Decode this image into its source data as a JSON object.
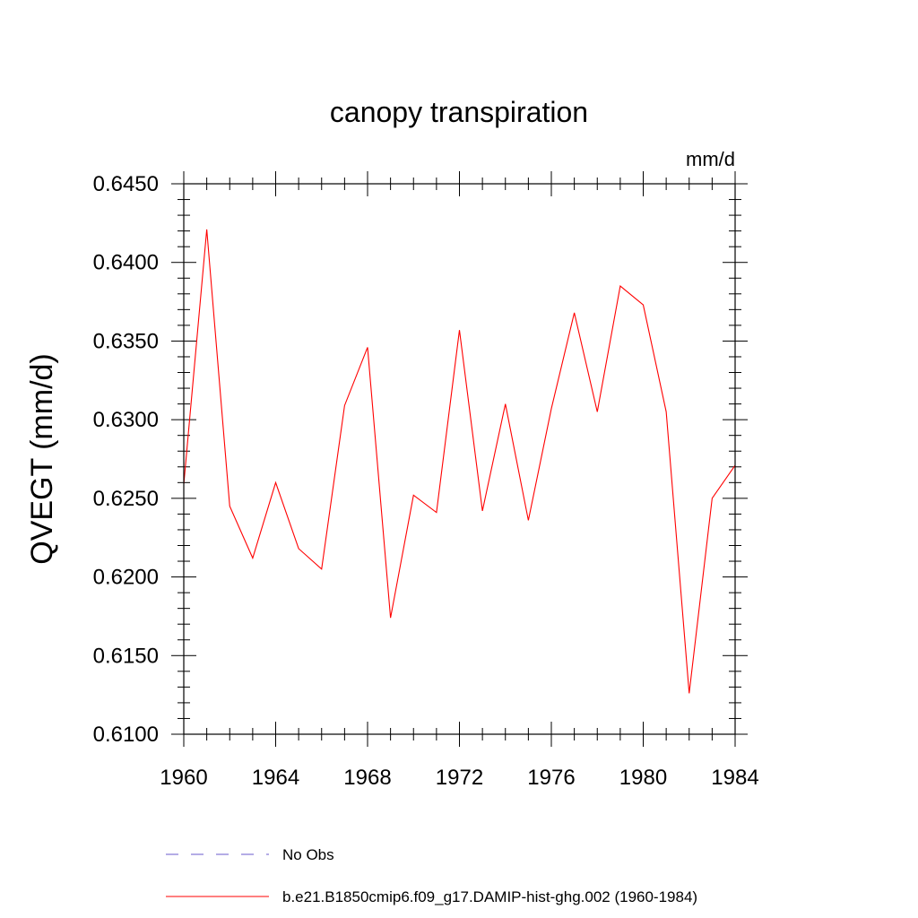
{
  "chart_data": {
    "type": "line",
    "title": "canopy transpiration",
    "units_label": "mm/d",
    "ylabel": "QVEGT  (mm/d)",
    "xlabel": "",
    "xlim": [
      1960,
      1984
    ],
    "ylim": [
      0.61,
      0.645
    ],
    "x_ticks": [
      "1960",
      "1964",
      "1968",
      "1972",
      "1976",
      "1980",
      "1984"
    ],
    "y_ticks": [
      "0.6100",
      "0.6150",
      "0.6200",
      "0.6250",
      "0.6300",
      "0.6350",
      "0.6400",
      "0.6450"
    ],
    "grid": false,
    "legend_position": "bottom",
    "legend": [
      {
        "label": "No Obs",
        "style": "dashed",
        "color": "#6a5acd"
      },
      {
        "label": "b.e21.B1850cmip6.f09_g17.DAMIP-hist-ghg.002 (1960-1984)",
        "style": "solid",
        "color": "#ff0000"
      }
    ],
    "series": [
      {
        "name": "b.e21.B1850cmip6.f09_g17.DAMIP-hist-ghg.002 (1960-1984)",
        "color": "#ff0000",
        "x": [
          1960,
          1961,
          1962,
          1963,
          1964,
          1965,
          1966,
          1967,
          1968,
          1969,
          1970,
          1971,
          1972,
          1973,
          1974,
          1975,
          1976,
          1977,
          1978,
          1979,
          1980,
          1981,
          1982,
          1983,
          1984
        ],
        "y": [
          0.6259,
          0.6421,
          0.6245,
          0.6212,
          0.626,
          0.6218,
          0.6205,
          0.6309,
          0.6346,
          0.6174,
          0.6252,
          0.6241,
          0.6357,
          0.6242,
          0.631,
          0.6236,
          0.6307,
          0.6368,
          0.6305,
          0.6385,
          0.6373,
          0.6305,
          0.6126,
          0.625,
          0.6271
        ]
      }
    ]
  }
}
